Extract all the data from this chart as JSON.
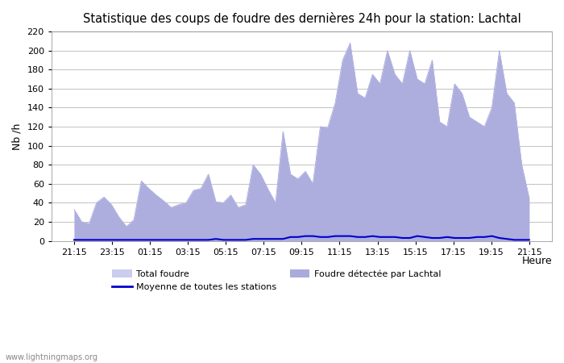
{
  "title": "Statistique des coups de foudre des dernières 24h pour la station: Lachtal",
  "xlabel": "Heure",
  "ylabel": "Nb /h",
  "watermark": "www.lightningmaps.org",
  "ylim": [
    0,
    220
  ],
  "yticks": [
    0,
    20,
    40,
    60,
    80,
    100,
    120,
    140,
    160,
    180,
    200,
    220
  ],
  "xtick_labels": [
    "21:15",
    "23:15",
    "01:15",
    "03:15",
    "05:15",
    "07:15",
    "09:15",
    "11:15",
    "13:15",
    "15:15",
    "17:15",
    "19:15",
    "21:15"
  ],
  "color_total": "#ccccee",
  "color_lachtal": "#aaaadd",
  "color_moyenne": "#0000cc",
  "total_foudre": [
    33,
    20,
    18,
    40,
    46,
    38,
    25,
    15,
    22,
    63,
    55,
    48,
    42,
    35,
    38,
    40,
    53,
    55,
    70,
    41,
    40,
    48,
    35,
    38,
    80,
    70,
    54,
    40,
    115,
    70,
    65,
    73,
    60,
    120,
    119,
    145,
    190,
    208,
    155,
    150,
    175,
    165,
    200,
    175,
    165,
    200,
    170,
    165,
    190,
    125,
    120,
    165,
    155,
    130,
    125,
    120,
    140,
    200,
    155,
    145,
    80,
    45
  ],
  "lachtal_foudre": [
    33,
    20,
    18,
    40,
    46,
    38,
    25,
    15,
    22,
    63,
    55,
    48,
    42,
    35,
    38,
    40,
    53,
    55,
    70,
    41,
    40,
    48,
    35,
    38,
    80,
    70,
    54,
    40,
    115,
    70,
    65,
    73,
    60,
    120,
    119,
    145,
    190,
    208,
    155,
    150,
    175,
    165,
    200,
    175,
    165,
    200,
    170,
    165,
    190,
    125,
    120,
    165,
    155,
    130,
    125,
    120,
    140,
    200,
    155,
    145,
    80,
    45
  ],
  "moyenne": [
    1,
    1,
    1,
    1,
    1,
    1,
    1,
    1,
    1,
    1,
    1,
    1,
    1,
    1,
    1,
    1,
    1,
    1,
    1,
    2,
    1,
    1,
    1,
    1,
    2,
    2,
    2,
    2,
    2,
    4,
    4,
    5,
    5,
    4,
    4,
    5,
    5,
    5,
    4,
    4,
    5,
    4,
    4,
    4,
    3,
    3,
    5,
    4,
    3,
    3,
    4,
    3,
    3,
    3,
    4,
    4,
    5,
    3,
    2,
    1,
    1,
    1
  ],
  "background_color": "#ffffff",
  "plot_bg_color": "#ffffff",
  "grid_color": "#aaaaaa"
}
